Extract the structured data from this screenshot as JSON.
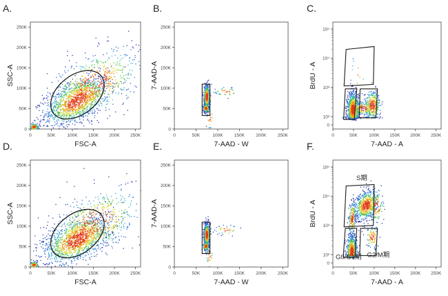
{
  "figure": {
    "chart_data": [
      {
        "panel_label": "A.",
        "type": "scatter",
        "kind": "linear",
        "xlabel": "FSC-A",
        "ylabel": "SSC-A",
        "xlim": [
          0,
          262144
        ],
        "ylim": [
          0,
          262144
        ],
        "x_ticks": [
          {
            "v": 0,
            "t": "0"
          },
          {
            "v": 50000,
            "t": "50K"
          },
          {
            "v": 100000,
            "t": "100K"
          },
          {
            "v": 150000,
            "t": "150K"
          },
          {
            "v": 200000,
            "t": "200K"
          },
          {
            "v": 250000,
            "t": "250K"
          }
        ],
        "y_ticks": [
          {
            "v": 0,
            "t": "0"
          },
          {
            "v": 50000,
            "t": "50K"
          },
          {
            "v": 100000,
            "t": "100K"
          },
          {
            "v": 150000,
            "t": "150K"
          },
          {
            "v": 200000,
            "t": "200K"
          },
          {
            "v": 250000,
            "t": "250K"
          }
        ],
        "clusters": [
          {
            "cx": 110000,
            "cy": 70000,
            "sx": 38000,
            "sy": 30000,
            "rho": 0.55,
            "n": 1300
          },
          {
            "cx": 150000,
            "cy": 110000,
            "sx": 55000,
            "sy": 45000,
            "rho": 0.5,
            "n": 650
          },
          {
            "cx": 8000,
            "cy": 6000,
            "sx": 5000,
            "sy": 4000,
            "rho": 0,
            "n": 140
          }
        ],
        "gates": [
          {
            "type": "ellipse",
            "cx": 112000,
            "cy": 84000,
            "rx": 72000,
            "ry": 48000,
            "angle_deg": 38
          }
        ]
      },
      {
        "panel_label": "B.",
        "type": "scatter",
        "kind": "linear",
        "xlabel": "7-AAD - W",
        "ylabel": "7-AAD-A",
        "xlim": [
          0,
          262144
        ],
        "ylim": [
          0,
          262144
        ],
        "x_ticks": [
          {
            "v": 0,
            "t": "0"
          },
          {
            "v": 50000,
            "t": "50K"
          },
          {
            "v": 100000,
            "t": "100K"
          },
          {
            "v": 150000,
            "t": "150K"
          },
          {
            "v": 200000,
            "t": "200K"
          },
          {
            "v": 250000,
            "t": "250K"
          }
        ],
        "y_ticks": [
          {
            "v": 0,
            "t": "0"
          },
          {
            "v": 50000,
            "t": "50K"
          },
          {
            "v": 100000,
            "t": "100K"
          },
          {
            "v": 150000,
            "t": "150K"
          },
          {
            "v": 200000,
            "t": "200K"
          },
          {
            "v": 250000,
            "t": "250K"
          }
        ],
        "clusters": [
          {
            "cx": 74000,
            "cy": 80000,
            "sx": 3000,
            "sy": 14000,
            "rho": 0,
            "n": 700
          },
          {
            "cx": 72000,
            "cy": 52000,
            "sx": 3000,
            "sy": 5000,
            "rho": 0,
            "n": 250
          },
          {
            "cx": 118000,
            "cy": 92000,
            "sx": 14000,
            "sy": 6000,
            "rho": 0,
            "n": 40
          },
          {
            "cx": 80000,
            "cy": 28000,
            "sx": 4000,
            "sy": 14000,
            "rho": 0,
            "n": 30
          }
        ],
        "gates": [
          {
            "type": "rect",
            "x0": 64000,
            "x1": 82000,
            "y0": 33000,
            "y1": 110000
          }
        ]
      },
      {
        "panel_label": "C.",
        "type": "scatter",
        "kind": "biex",
        "xlabel": "7-AAD - A",
        "ylabel": "BrdU - A",
        "xlim": [
          0,
          262144
        ],
        "ylim": [
          0,
          5
        ],
        "x_ticks": [
          {
            "v": 0,
            "t": "0"
          },
          {
            "v": 50000,
            "t": "50K"
          },
          {
            "v": 100000,
            "t": "100K"
          },
          {
            "v": 150000,
            "t": "150K"
          },
          {
            "v": 200000,
            "t": "200K"
          },
          {
            "v": 250000,
            "t": "250K"
          }
        ],
        "y_ticks": [
          {
            "v": 0,
            "t": "0"
          },
          {
            "v": 2,
            "t": "10²"
          },
          {
            "v": 3,
            "t": "10³"
          },
          {
            "v": 4,
            "t": "10⁴"
          },
          {
            "v": 5,
            "t": "10⁵"
          }
        ],
        "clusters": [
          {
            "cx": 48000,
            "cy": 2.25,
            "sx": 7000,
            "sy": 0.3,
            "rho": 0,
            "n": 900
          },
          {
            "cx": 95000,
            "cy": 2.4,
            "sx": 10000,
            "sy": 0.25,
            "rho": 0,
            "n": 350
          },
          {
            "cx": 72000,
            "cy": 2.3,
            "sx": 14000,
            "sy": 0.12,
            "rho": 0,
            "n": 160
          },
          {
            "cx": 58000,
            "cy": 3.4,
            "sx": 9000,
            "sy": 0.4,
            "rho": 0,
            "n": 12
          }
        ],
        "gates": [
          {
            "type": "poly",
            "pts": [
              [
                27000,
                3.05
              ],
              [
                32000,
                4.3
              ],
              [
                100000,
                4.4
              ],
              [
                98000,
                3.1
              ]
            ]
          },
          {
            "type": "poly",
            "pts": [
              [
                26000,
                1.3
              ],
              [
                30000,
                2.95
              ],
              [
                58000,
                2.95
              ],
              [
                52000,
                1.3
              ]
            ]
          },
          {
            "type": "poly",
            "pts": [
              [
                64000,
                1.7
              ],
              [
                66000,
                2.95
              ],
              [
                108000,
                2.95
              ],
              [
                104000,
                1.7
              ]
            ]
          }
        ],
        "labels": []
      },
      {
        "panel_label": "D.",
        "type": "scatter",
        "kind": "linear",
        "xlabel": "FSC-A",
        "ylabel": "SSC-A",
        "xlim": [
          0,
          262144
        ],
        "ylim": [
          0,
          262144
        ],
        "x_ticks": [
          {
            "v": 0,
            "t": "0"
          },
          {
            "v": 50000,
            "t": "50K"
          },
          {
            "v": 100000,
            "t": "100K"
          },
          {
            "v": 150000,
            "t": "150K"
          },
          {
            "v": 200000,
            "t": "200K"
          },
          {
            "v": 250000,
            "t": "250K"
          }
        ],
        "y_ticks": [
          {
            "v": 0,
            "t": "0"
          },
          {
            "v": 50000,
            "t": "50K"
          },
          {
            "v": 100000,
            "t": "100K"
          },
          {
            "v": 150000,
            "t": "150K"
          },
          {
            "v": 200000,
            "t": "200K"
          },
          {
            "v": 250000,
            "t": "250K"
          }
        ],
        "clusters": [
          {
            "cx": 110000,
            "cy": 68000,
            "sx": 40000,
            "sy": 30000,
            "rho": 0.55,
            "n": 1300
          },
          {
            "cx": 150000,
            "cy": 105000,
            "sx": 55000,
            "sy": 45000,
            "rho": 0.5,
            "n": 650
          },
          {
            "cx": 8000,
            "cy": 6000,
            "sx": 5000,
            "sy": 4000,
            "rho": 0,
            "n": 140
          }
        ],
        "gates": [
          {
            "type": "ellipse",
            "cx": 112000,
            "cy": 82000,
            "rx": 72000,
            "ry": 48000,
            "angle_deg": 38
          }
        ]
      },
      {
        "panel_label": "E.",
        "type": "scatter",
        "kind": "linear",
        "xlabel": "7-AAD - W",
        "ylabel": "7-AAD-A",
        "xlim": [
          0,
          262144
        ],
        "ylim": [
          0,
          262144
        ],
        "x_ticks": [
          {
            "v": 0,
            "t": "0"
          },
          {
            "v": 50000,
            "t": "50K"
          },
          {
            "v": 100000,
            "t": "100K"
          },
          {
            "v": 150000,
            "t": "150K"
          },
          {
            "v": 200000,
            "t": "200K"
          },
          {
            "v": 250000,
            "t": "250K"
          }
        ],
        "y_ticks": [
          {
            "v": 0,
            "t": "0"
          },
          {
            "v": 50000,
            "t": "50K"
          },
          {
            "v": 100000,
            "t": "100K"
          },
          {
            "v": 150000,
            "t": "150K"
          },
          {
            "v": 200000,
            "t": "200K"
          },
          {
            "v": 250000,
            "t": "250K"
          }
        ],
        "clusters": [
          {
            "cx": 74000,
            "cy": 80000,
            "sx": 3000,
            "sy": 14000,
            "rho": 0,
            "n": 700
          },
          {
            "cx": 72000,
            "cy": 52000,
            "sx": 3000,
            "sy": 5000,
            "rho": 0,
            "n": 250
          },
          {
            "cx": 118000,
            "cy": 92000,
            "sx": 14000,
            "sy": 6000,
            "rho": 0,
            "n": 40
          },
          {
            "cx": 80000,
            "cy": 28000,
            "sx": 4000,
            "sy": 14000,
            "rho": 0,
            "n": 30
          }
        ],
        "gates": [
          {
            "type": "rect",
            "x0": 64000,
            "x1": 82000,
            "y0": 33000,
            "y1": 110000
          }
        ]
      },
      {
        "panel_label": "F.",
        "type": "scatter",
        "kind": "biex",
        "xlabel": "7-AAD - A",
        "ylabel": "BrdU - A",
        "xlim": [
          0,
          262144
        ],
        "ylim": [
          0,
          5
        ],
        "x_ticks": [
          {
            "v": 0,
            "t": "0"
          },
          {
            "v": 50000,
            "t": "50K"
          },
          {
            "v": 100000,
            "t": "100K"
          },
          {
            "v": 150000,
            "t": "150K"
          },
          {
            "v": 200000,
            "t": "200K"
          },
          {
            "v": 250000,
            "t": "250K"
          }
        ],
        "y_ticks": [
          {
            "v": 0,
            "t": "0"
          },
          {
            "v": 2,
            "t": "10²"
          },
          {
            "v": 3,
            "t": "10³"
          },
          {
            "v": 4,
            "t": "10⁴"
          },
          {
            "v": 5,
            "t": "10⁵"
          }
        ],
        "clusters": [
          {
            "cx": 45000,
            "cy": 2.1,
            "sx": 6000,
            "sy": 0.3,
            "rho": 0,
            "n": 650
          },
          {
            "cx": 95000,
            "cy": 2.6,
            "sx": 8000,
            "sy": 0.2,
            "rho": 0,
            "n": 90
          },
          {
            "cx": 80000,
            "cy": 3.7,
            "sx": 14000,
            "sy": 0.25,
            "rho": 0.3,
            "n": 650
          },
          {
            "cx": 46000,
            "cy": 3.25,
            "sx": 4000,
            "sy": 0.3,
            "rho": 0.2,
            "n": 200
          },
          {
            "cx": 105000,
            "cy": 3.65,
            "sx": 8000,
            "sy": 0.3,
            "rho": 0,
            "n": 120
          }
        ],
        "gates": [
          {
            "type": "poly",
            "pts": [
              [
                27000,
                2.95
              ],
              [
                32000,
                4.35
              ],
              [
                100000,
                4.4
              ],
              [
                98000,
                3.0
              ]
            ]
          },
          {
            "type": "poly",
            "pts": [
              [
                25000,
                1.35
              ],
              [
                30000,
                2.9
              ],
              [
                58000,
                2.9
              ],
              [
                53000,
                1.35
              ]
            ]
          },
          {
            "type": "poly",
            "pts": [
              [
                65000,
                1.75
              ],
              [
                67000,
                2.9
              ],
              [
                108000,
                2.9
              ],
              [
                104000,
                1.75
              ]
            ]
          }
        ],
        "labels": [
          {
            "text": "S期",
            "x": 70000,
            "y": 4.55
          },
          {
            "text": "G0/G1期",
            "x": 38000,
            "y": 0.9
          },
          {
            "text": "G2/M期",
            "x": 110000,
            "y": 1.45
          }
        ]
      }
    ],
    "colors": {
      "axis": "#444444",
      "gate": "#1a1a1a",
      "density": [
        "#2b3aa8",
        "#2f6fd6",
        "#3fb0c8",
        "#4fc04f",
        "#d8d830",
        "#f09a20",
        "#e23a1a"
      ]
    }
  }
}
